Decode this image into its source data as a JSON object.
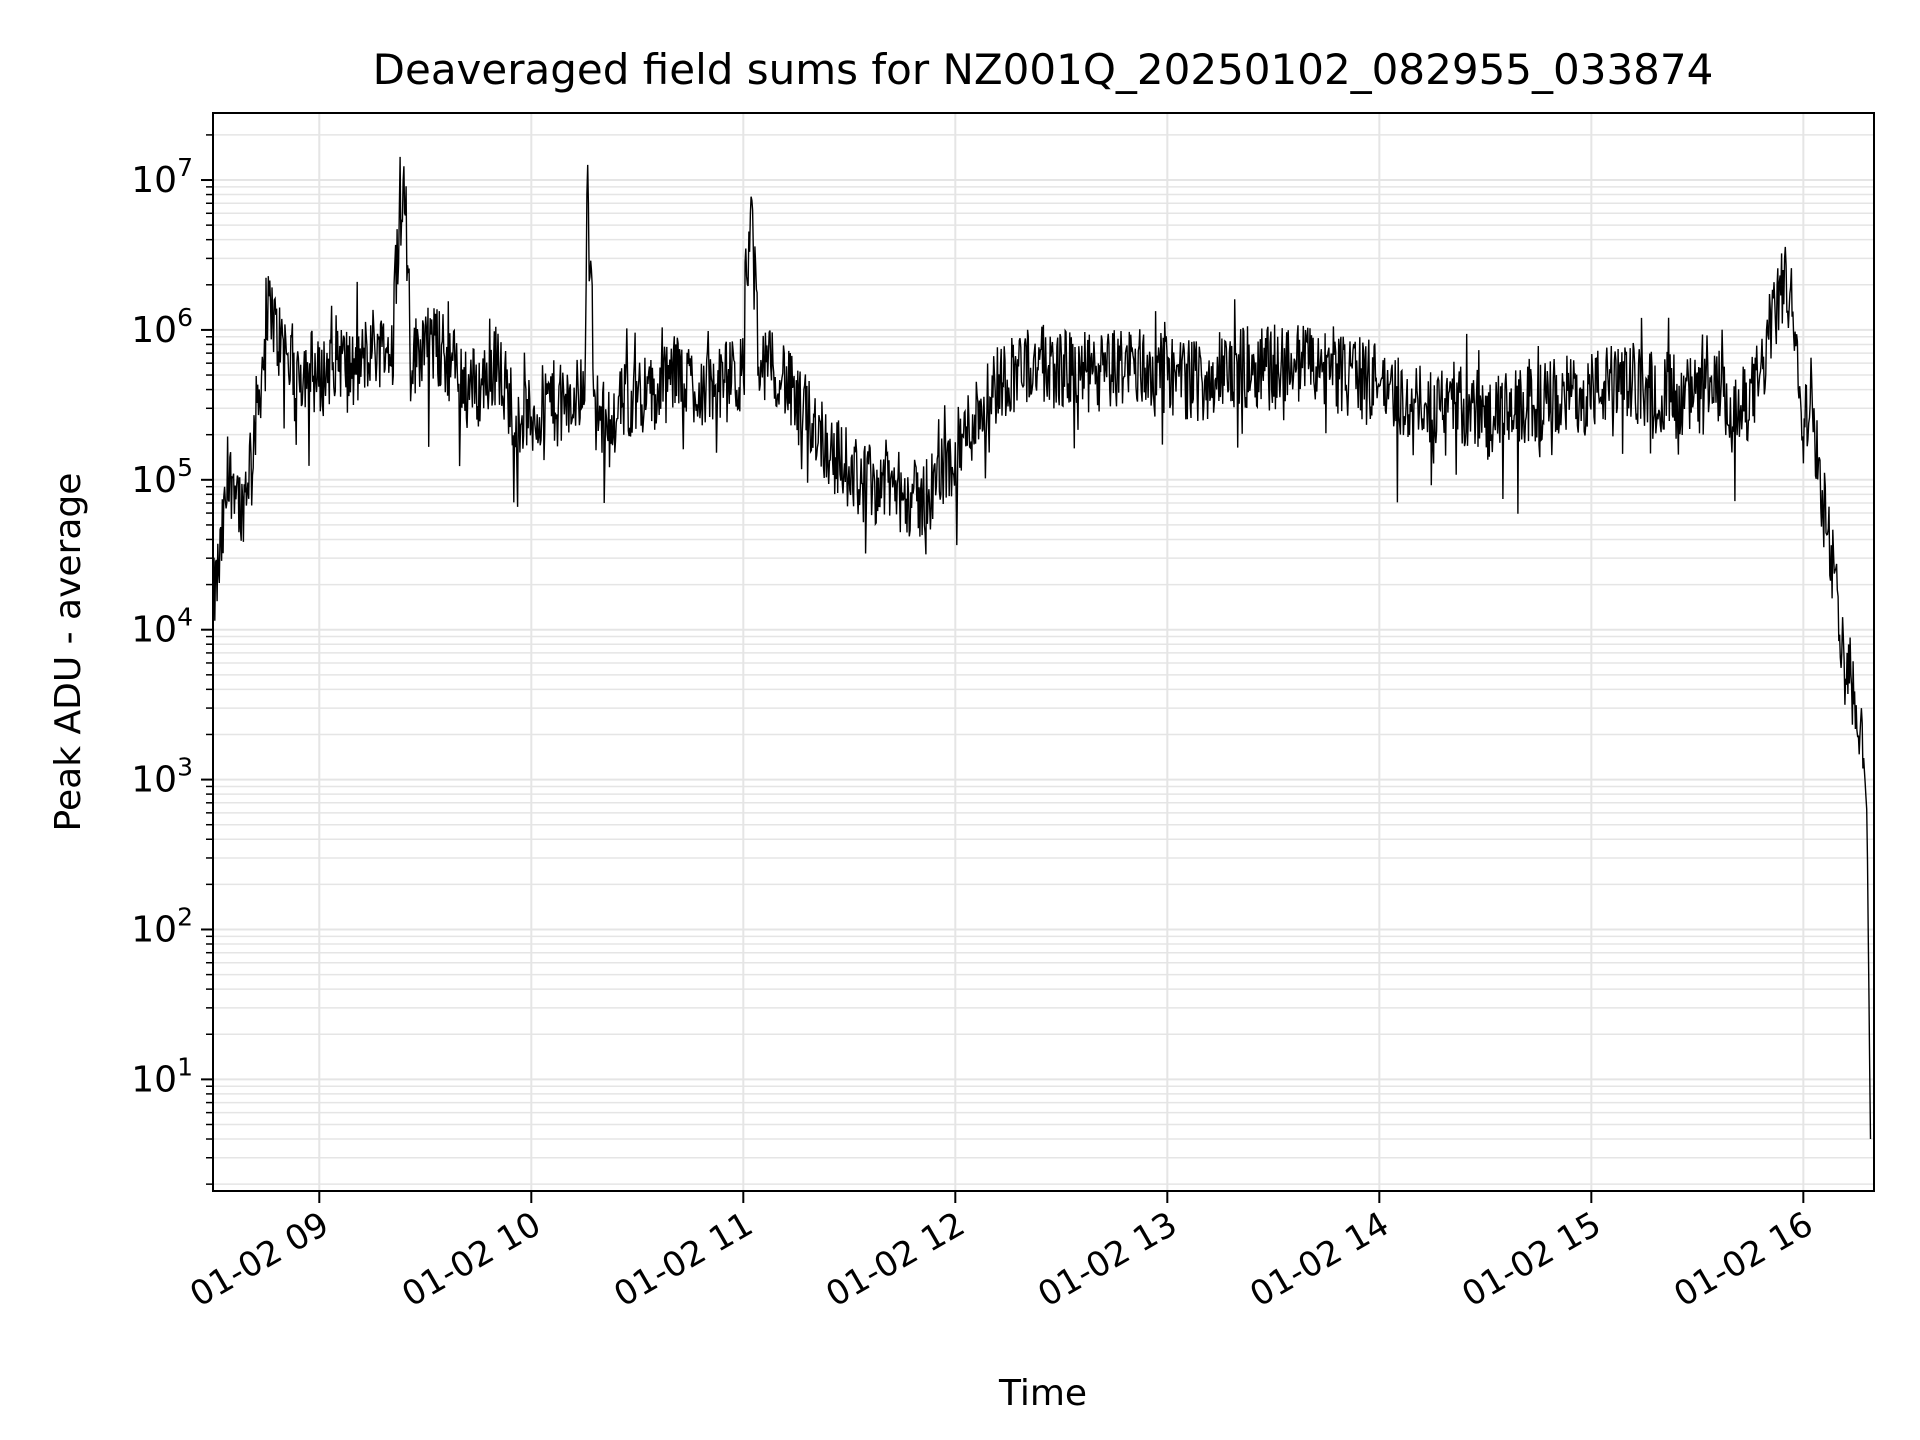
{
  "chart_data": {
    "type": "line",
    "title": "Deaveraged field sums for NZ001Q_20250102_082955_033874",
    "xlabel": "Time",
    "ylabel": "Peak ADU - average",
    "yscale": "log",
    "xlim": [
      "2025-01-02 08:29:55",
      "2025-01-02 16:20:00"
    ],
    "ylim": [
      1.8,
      28000000
    ],
    "grid": true,
    "line_color": "#000000",
    "grid_color": "#e5e5e5",
    "x_ticks": [
      {
        "value": "2025-01-02 09:00",
        "label": "01-02 09"
      },
      {
        "value": "2025-01-02 10:00",
        "label": "01-02 10"
      },
      {
        "value": "2025-01-02 11:00",
        "label": "01-02 11"
      },
      {
        "value": "2025-01-02 12:00",
        "label": "01-02 12"
      },
      {
        "value": "2025-01-02 13:00",
        "label": "01-02 13"
      },
      {
        "value": "2025-01-02 14:00",
        "label": "01-02 14"
      },
      {
        "value": "2025-01-02 15:00",
        "label": "01-02 15"
      },
      {
        "value": "2025-01-02 16:00",
        "label": "01-02 16"
      }
    ],
    "y_ticks": [
      {
        "value": 10,
        "base": "10",
        "exp": "1"
      },
      {
        "value": 100,
        "base": "10",
        "exp": "2"
      },
      {
        "value": 1000,
        "base": "10",
        "exp": "3"
      },
      {
        "value": 10000,
        "base": "10",
        "exp": "4"
      },
      {
        "value": 100000,
        "base": "10",
        "exp": "5"
      },
      {
        "value": 1000000,
        "base": "10",
        "exp": "6"
      },
      {
        "value": 10000000,
        "base": "10",
        "exp": "7"
      }
    ],
    "series": [
      {
        "x": [
          "2025-01-02 08:30",
          "2025-01-02 08:32",
          "2025-01-02 08:34",
          "2025-01-02 08:36",
          "2025-01-02 08:38",
          "2025-01-02 08:40",
          "2025-01-02 08:42",
          "2025-01-02 08:44",
          "2025-01-02 08:46",
          "2025-01-02 08:48",
          "2025-01-02 08:51",
          "2025-01-02 08:54",
          "2025-01-02 08:57",
          "2025-01-02 09:00",
          "2025-01-02 09:05",
          "2025-01-02 09:10",
          "2025-01-02 09:15",
          "2025-01-02 09:20",
          "2025-01-02 09:24",
          "2025-01-02 09:26",
          "2025-01-02 09:30",
          "2025-01-02 09:35",
          "2025-01-02 09:40",
          "2025-01-02 09:45",
          "2025-01-02 09:50",
          "2025-01-02 09:55",
          "2025-01-02 10:00",
          "2025-01-02 10:05",
          "2025-01-02 10:10",
          "2025-01-02 10:15",
          "2025-01-02 10:16",
          "2025-01-02 10:18",
          "2025-01-02 10:20",
          "2025-01-02 10:25",
          "2025-01-02 10:30",
          "2025-01-02 10:35",
          "2025-01-02 10:40",
          "2025-01-02 10:45",
          "2025-01-02 10:50",
          "2025-01-02 10:55",
          "2025-01-02 11:00",
          "2025-01-02 11:02",
          "2025-01-02 11:05",
          "2025-01-02 11:10",
          "2025-01-02 11:15",
          "2025-01-02 11:20",
          "2025-01-02 11:25",
          "2025-01-02 11:30",
          "2025-01-02 11:35",
          "2025-01-02 11:40",
          "2025-01-02 11:45",
          "2025-01-02 11:50",
          "2025-01-02 11:55",
          "2025-01-02 12:00",
          "2025-01-02 12:05",
          "2025-01-02 12:10",
          "2025-01-02 12:15",
          "2025-01-02 12:20",
          "2025-01-02 12:30",
          "2025-01-02 12:40",
          "2025-01-02 12:50",
          "2025-01-02 13:00",
          "2025-01-02 13:10",
          "2025-01-02 13:20",
          "2025-01-02 13:30",
          "2025-01-02 13:40",
          "2025-01-02 13:50",
          "2025-01-02 14:00",
          "2025-01-02 14:10",
          "2025-01-02 14:20",
          "2025-01-02 14:30",
          "2025-01-02 14:40",
          "2025-01-02 14:50",
          "2025-01-02 15:00",
          "2025-01-02 15:10",
          "2025-01-02 15:20",
          "2025-01-02 15:30",
          "2025-01-02 15:36",
          "2025-01-02 15:40",
          "2025-01-02 15:45",
          "2025-01-02 15:48",
          "2025-01-02 15:52",
          "2025-01-02 15:55",
          "2025-01-02 15:58",
          "2025-01-02 16:00",
          "2025-01-02 16:02",
          "2025-01-02 16:04",
          "2025-01-02 16:06",
          "2025-01-02 16:08",
          "2025-01-02 16:10",
          "2025-01-02 16:12",
          "2025-01-02 16:14",
          "2025-01-02 16:16",
          "2025-01-02 16:17",
          "2025-01-02 16:18",
          "2025-01-02 16:19"
        ],
        "y": [
          15000,
          30000,
          90000,
          110000,
          60000,
          120000,
          250000,
          600000,
          1500000,
          900000,
          700000,
          500000,
          600000,
          450000,
          700000,
          500000,
          800000,
          700000,
          13000000,
          600000,
          900000,
          700000,
          500000,
          400000,
          600000,
          300000,
          250000,
          350000,
          300000,
          400000,
          12000000,
          300000,
          250000,
          300000,
          400000,
          350000,
          500000,
          450000,
          400000,
          450000,
          500000,
          6500000,
          500000,
          600000,
          300000,
          250000,
          150000,
          120000,
          90000,
          100000,
          80000,
          70000,
          100000,
          150000,
          250000,
          400000,
          500000,
          600000,
          550000,
          500000,
          600000,
          500000,
          450000,
          550000,
          600000,
          600000,
          500000,
          450000,
          300000,
          350000,
          250000,
          300000,
          350000,
          400000,
          450000,
          400000,
          350000,
          400000,
          250000,
          350000,
          500000,
          1400000,
          2000000,
          1200000,
          200000,
          400000,
          150000,
          60000,
          30000,
          12000,
          8000,
          4000,
          2500,
          1500,
          600,
          4
        ]
      }
    ],
    "spikes": [
      {
        "x": "2025-01-02 09:24",
        "y": 13000000
      },
      {
        "x": "2025-01-02 10:16",
        "y": 12000000
      },
      {
        "x": "2025-01-02 11:02",
        "y": 6500000
      }
    ]
  }
}
